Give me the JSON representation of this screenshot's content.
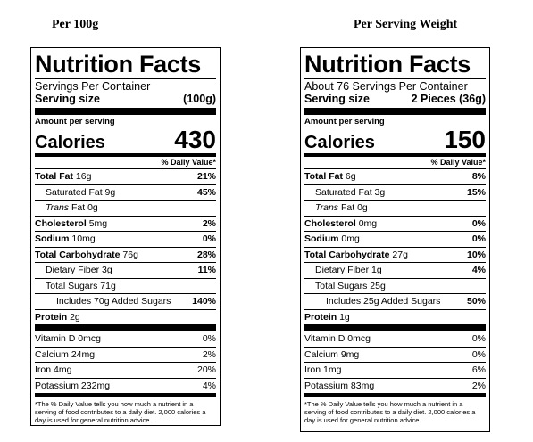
{
  "headings": {
    "left": "Per 100g",
    "right": "Per Serving Weight"
  },
  "labels": [
    {
      "title": "Nutrition Facts",
      "servings": "Servings Per Container",
      "serving_size_label": "Serving size",
      "serving_size_value": "(100g)",
      "amount_per_serving": "Amount per serving",
      "calories_label": "Calories",
      "calories_value": "430",
      "dv_header": "% Daily Value*",
      "nutrients": {
        "total_fat": {
          "label": "Total Fat",
          "amount": "16g",
          "dv": "21%"
        },
        "sat_fat": {
          "label": "Saturated Fat",
          "amount": "9g",
          "dv": "45%"
        },
        "trans_fat": {
          "label_italic": "Trans",
          "label": "Fat",
          "amount": "0g",
          "dv": ""
        },
        "cholesterol": {
          "label": "Cholesterol",
          "amount": "5mg",
          "dv": "2%"
        },
        "sodium": {
          "label": "Sodium",
          "amount": "10mg",
          "dv": "0%"
        },
        "total_carb": {
          "label": "Total Carbohydrate",
          "amount": "76g",
          "dv": "28%"
        },
        "fiber": {
          "label": "Dietary Fiber",
          "amount": "3g",
          "dv": "11%"
        },
        "sugars": {
          "label": "Total Sugars",
          "amount": "71g",
          "dv": ""
        },
        "added_sugars": {
          "label": "Includes 70g Added Sugars",
          "dv": "140%"
        },
        "protein": {
          "label": "Protein",
          "amount": "2g"
        }
      },
      "vitamins": [
        {
          "label": "Vitamin D 0mcg",
          "dv": "0%"
        },
        {
          "label": "Calcium 24mg",
          "dv": "2%"
        },
        {
          "label": "Iron 4mg",
          "dv": "20%"
        },
        {
          "label": "Potassium 232mg",
          "dv": "4%"
        }
      ],
      "footnote": "*The % Daily Value tells you how much a nutrient in a serving of food contributes to a daily diet. 2,000 calories a day is used for general nutrition advice."
    },
    {
      "title": "Nutrition Facts",
      "servings": "About 76 Servings Per Container",
      "serving_size_label": "Serving size",
      "serving_size_value": "2 Pieces (36g)",
      "amount_per_serving": "Amount per serving",
      "calories_label": "Calories",
      "calories_value": "150",
      "dv_header": "% Daily Value*",
      "nutrients": {
        "total_fat": {
          "label": "Total Fat",
          "amount": "6g",
          "dv": "8%"
        },
        "sat_fat": {
          "label": "Saturated Fat",
          "amount": "3g",
          "dv": "15%"
        },
        "trans_fat": {
          "label_italic": "Trans",
          "label": "Fat",
          "amount": "0g",
          "dv": ""
        },
        "cholesterol": {
          "label": "Cholesterol",
          "amount": "0mg",
          "dv": "0%"
        },
        "sodium": {
          "label": "Sodium",
          "amount": "0mg",
          "dv": "0%"
        },
        "total_carb": {
          "label": "Total Carbohydrate",
          "amount": "27g",
          "dv": "10%"
        },
        "fiber": {
          "label": "Dietary Fiber",
          "amount": "1g",
          "dv": "4%"
        },
        "sugars": {
          "label": "Total Sugars",
          "amount": "25g",
          "dv": ""
        },
        "added_sugars": {
          "label": "Includes 25g Added Sugars",
          "dv": "50%"
        },
        "protein": {
          "label": "Protein",
          "amount": "1g"
        }
      },
      "vitamins": [
        {
          "label": "Vitamin D 0mcg",
          "dv": "0%"
        },
        {
          "label": "Calcium 9mg",
          "dv": "0%"
        },
        {
          "label": "Iron 1mg",
          "dv": "6%"
        },
        {
          "label": "Potassium 83mg",
          "dv": "2%"
        }
      ],
      "footnote": "*The % Daily Value tells you how much a nutrient in a serving of food contributes to a daily diet. 2,000 calories a day is used for general nutrition advice."
    }
  ]
}
